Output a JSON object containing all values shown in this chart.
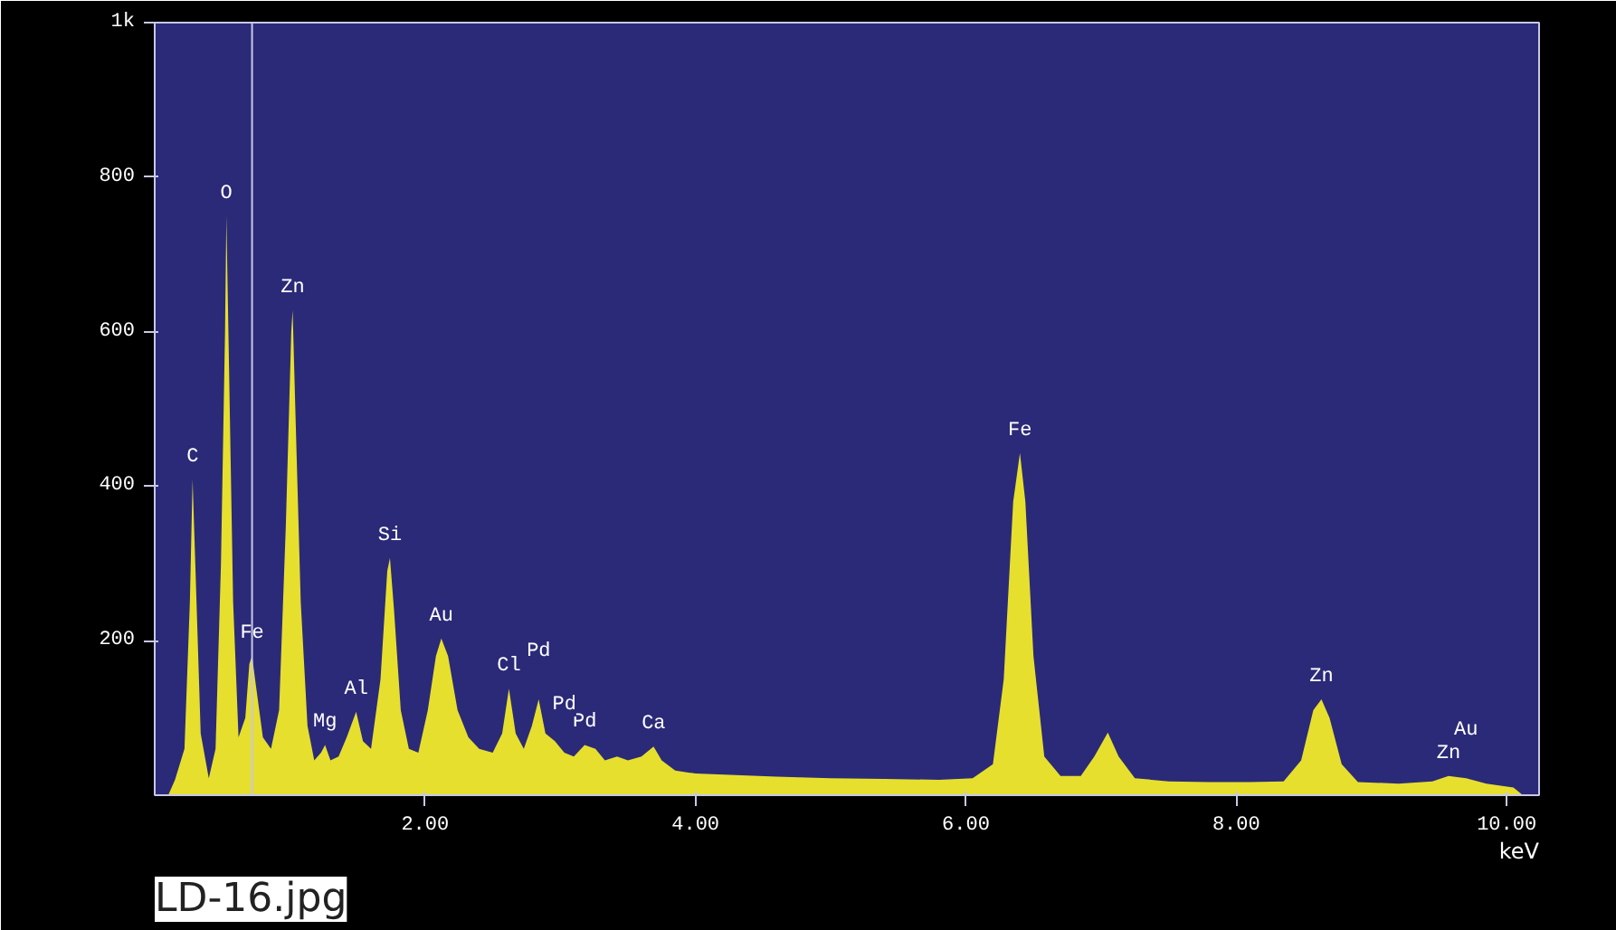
{
  "chart_data": {
    "type": "area",
    "xlabel": "keV",
    "x": [
      0.1,
      0.15,
      0.22,
      0.26,
      0.28,
      0.3,
      0.34,
      0.4,
      0.45,
      0.49,
      0.52,
      0.53,
      0.55,
      0.58,
      0.62,
      0.67,
      0.7,
      0.72,
      0.75,
      0.8,
      0.86,
      0.92,
      0.97,
      1.01,
      1.02,
      1.04,
      1.08,
      1.13,
      1.18,
      1.23,
      1.26,
      1.3,
      1.36,
      1.42,
      1.49,
      1.54,
      1.6,
      1.67,
      1.72,
      1.74,
      1.77,
      1.82,
      1.88,
      1.95,
      2.02,
      2.08,
      2.12,
      2.17,
      2.24,
      2.32,
      2.4,
      2.5,
      2.57,
      2.62,
      2.67,
      2.73,
      2.79,
      2.84,
      2.89,
      2.96,
      3.03,
      3.1,
      3.18,
      3.26,
      3.33,
      3.42,
      3.5,
      3.6,
      3.69,
      3.75,
      3.85,
      4.0,
      4.3,
      4.6,
      5.0,
      5.4,
      5.8,
      6.05,
      6.2,
      6.28,
      6.35,
      6.4,
      6.44,
      6.5,
      6.58,
      6.7,
      6.85,
      6.95,
      7.05,
      7.13,
      7.25,
      7.5,
      7.8,
      8.1,
      8.35,
      8.48,
      8.57,
      8.63,
      8.69,
      8.78,
      8.9,
      9.2,
      9.45,
      9.57,
      9.7,
      9.85,
      10.05,
      10.12
    ],
    "series": [
      {
        "color": "#e6df2e",
        "values": [
          0,
          20,
          60,
          250,
          409,
          300,
          80,
          22,
          60,
          300,
          600,
          750,
          550,
          250,
          75,
          100,
          170,
          180,
          140,
          75,
          60,
          110,
          350,
          600,
          628,
          500,
          250,
          90,
          45,
          55,
          65,
          45,
          50,
          75,
          108,
          70,
          60,
          150,
          290,
          307,
          240,
          110,
          60,
          55,
          110,
          180,
          203,
          180,
          110,
          75,
          60,
          55,
          80,
          138,
          80,
          60,
          90,
          124,
          80,
          70,
          55,
          50,
          65,
          60,
          45,
          50,
          45,
          50,
          63,
          45,
          32,
          28,
          26,
          24,
          22,
          21,
          20,
          22,
          40,
          150,
          380,
          443,
          380,
          180,
          50,
          25,
          25,
          50,
          81,
          50,
          22,
          18,
          17,
          17,
          18,
          45,
          110,
          124,
          100,
          40,
          17,
          15,
          18,
          25,
          22,
          15,
          10,
          0
        ]
      }
    ],
    "xlim": [
      0,
      10.24
    ],
    "ylim": [
      0,
      1000
    ],
    "xticks": [
      {
        "value": 2,
        "label": "2.00"
      },
      {
        "value": 4,
        "label": "4.00"
      },
      {
        "value": 6,
        "label": "6.00"
      },
      {
        "value": 8,
        "label": "8.00"
      },
      {
        "value": 10,
        "label": "10.00"
      }
    ],
    "yticks": [
      200,
      400,
      600,
      800,
      {
        "value": 1000,
        "label": "1k"
      }
    ],
    "grid": false,
    "ref_lines": [
      {
        "axis": "x",
        "value": 0.72,
        "color": "#c8c8e8"
      }
    ],
    "annotations": [
      {
        "text": "C",
        "x": 0.28,
        "y": 409
      },
      {
        "text": "O",
        "x": 0.53,
        "y": 750
      },
      {
        "text": "Fe",
        "x": 0.72,
        "y": 180
      },
      {
        "text": "Zn",
        "x": 1.02,
        "y": 628
      },
      {
        "text": "Mg",
        "x": 1.26,
        "y": 65
      },
      {
        "text": "Al",
        "x": 1.49,
        "y": 108
      },
      {
        "text": "Si",
        "x": 1.74,
        "y": 307
      },
      {
        "text": "Au",
        "x": 2.12,
        "y": 203
      },
      {
        "text": "Cl",
        "x": 2.62,
        "y": 138
      },
      {
        "text": "Pd",
        "x": 2.84,
        "y": 124
      },
      {
        "text": "Pd",
        "x": 3.18,
        "y": 65
      },
      {
        "text": "Pd",
        "x": 3.03,
        "y": 55
      },
      {
        "text": "Ca",
        "x": 3.69,
        "y": 63
      },
      {
        "text": "Fe",
        "x": 6.4,
        "y": 443
      },
      {
        "text": "Zn",
        "x": 8.63,
        "y": 124
      },
      {
        "text": "Zn",
        "x": 9.57,
        "y": 25
      },
      {
        "text": "Au",
        "x": 9.7,
        "y": 22
      },
      "LD-16.jpg"
    ]
  }
}
